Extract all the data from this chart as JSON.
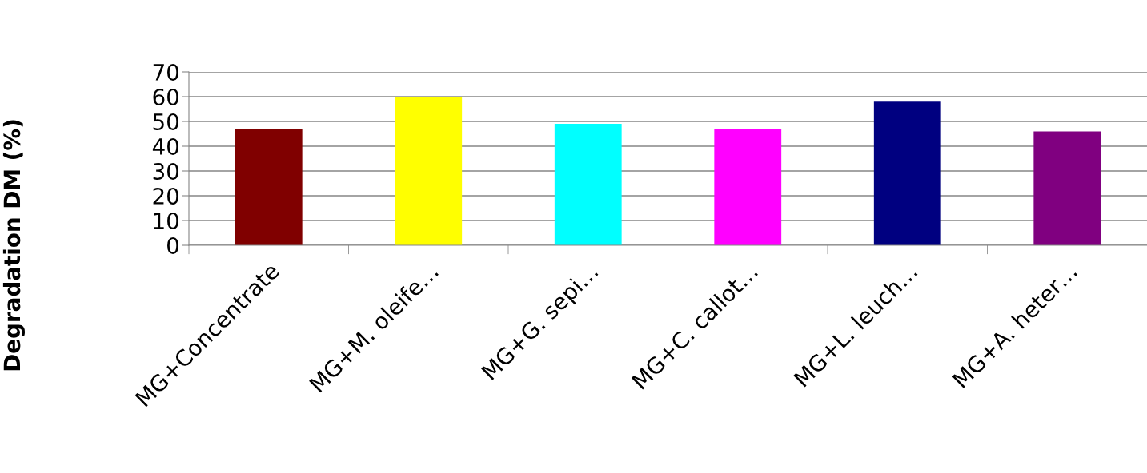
{
  "chart_data": {
    "type": "bar",
    "ylabel": "Degradation DM (%)",
    "categories": [
      "MG+Concentrate",
      "MG+M. oleife…",
      "MG+G. sepi…",
      "MG+C. callot…",
      "MG+L. leuch…",
      "MG+A. heter…"
    ],
    "values": [
      47,
      60,
      49,
      47,
      58,
      46
    ],
    "colors": [
      "#800000",
      "#ffff00",
      "#00ffff",
      "#ff00ff",
      "#000080",
      "#800080"
    ],
    "ylim": [
      0,
      70
    ],
    "yticks": [
      0,
      10,
      20,
      30,
      40,
      50,
      60,
      70
    ],
    "grid": "y",
    "legend": false
  }
}
